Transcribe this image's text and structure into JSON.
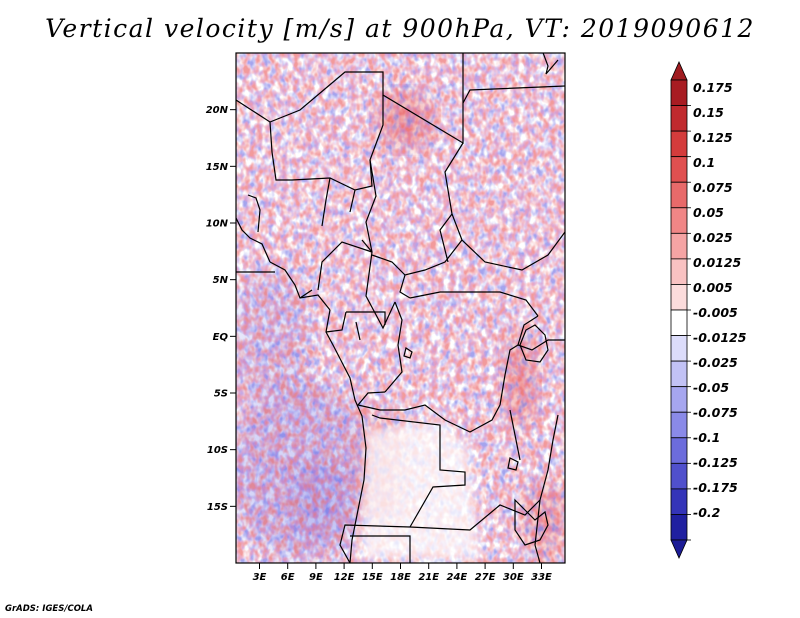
{
  "title": "Vertical velocity [m/s] at 900hPa, VT: 2019090612",
  "credit": "GrADS: IGES/COLA",
  "map": {
    "lon_range": [
      0.5,
      35.5
    ],
    "lat_range": [
      -20,
      25
    ],
    "lat_ticks": [
      {
        "value": 20,
        "label": "20N"
      },
      {
        "value": 15,
        "label": "15N"
      },
      {
        "value": 10,
        "label": "10N"
      },
      {
        "value": 5,
        "label": "5N"
      },
      {
        "value": 0,
        "label": "EQ"
      },
      {
        "value": -5,
        "label": "5S"
      },
      {
        "value": -10,
        "label": "10S"
      },
      {
        "value": -15,
        "label": "15S"
      }
    ],
    "lon_ticks": [
      {
        "value": 3,
        "label": "3E"
      },
      {
        "value": 6,
        "label": "6E"
      },
      {
        "value": 9,
        "label": "9E"
      },
      {
        "value": 12,
        "label": "12E"
      },
      {
        "value": 15,
        "label": "15E"
      },
      {
        "value": 18,
        "label": "18E"
      },
      {
        "value": 21,
        "label": "21E"
      },
      {
        "value": 24,
        "label": "24E"
      },
      {
        "value": 27,
        "label": "27E"
      },
      {
        "value": 30,
        "label": "30E"
      },
      {
        "value": 33,
        "label": "33E"
      }
    ]
  },
  "colorbar": {
    "levels": [
      {
        "label": "0.175",
        "color": "#a81c22"
      },
      {
        "label": "0.15",
        "color": "#c02a2e"
      },
      {
        "label": "0.125",
        "color": "#d43c3c"
      },
      {
        "label": "0.1",
        "color": "#e05050"
      },
      {
        "label": "0.075",
        "color": "#e86a6a"
      },
      {
        "label": "0.05",
        "color": "#f08686"
      },
      {
        "label": "0.025",
        "color": "#f5a4a4"
      },
      {
        "label": "0.0125",
        "color": "#f9c2c2"
      },
      {
        "label": "0.005",
        "color": "#fcdcdc"
      },
      {
        "label": "-0.005",
        "color": "#ffffff"
      },
      {
        "label": "-0.0125",
        "color": "#dcdcfa"
      },
      {
        "label": "-0.025",
        "color": "#c2c2f5"
      },
      {
        "label": "-0.05",
        "color": "#a6a6ef"
      },
      {
        "label": "-0.075",
        "color": "#8a8ae8"
      },
      {
        "label": "-0.1",
        "color": "#6c6cdc"
      },
      {
        "label": "-0.125",
        "color": "#5050cc"
      },
      {
        "label": "-0.175",
        "color": "#3434b8"
      },
      {
        "label": "-0.2",
        "color": "#2020a0"
      }
    ],
    "top_color": "#a01c20",
    "bottom_color": "#1c1c96"
  }
}
